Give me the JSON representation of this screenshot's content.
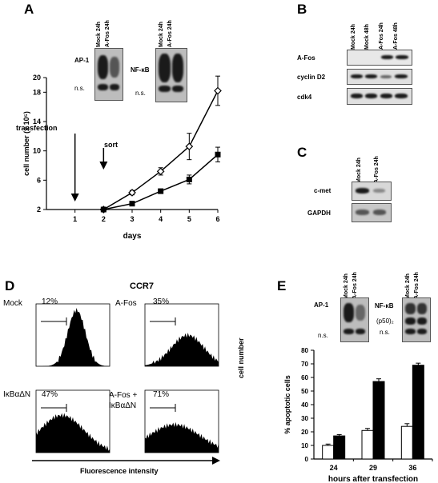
{
  "panels": {
    "A": {
      "label": "A",
      "gel1": {
        "lanes": [
          "Mock 24h",
          "A-Fos 24h"
        ],
        "label": "AP-1",
        "ns": "n.s."
      },
      "gel2": {
        "lanes": [
          "Mock 24h",
          "A-Fos 24h"
        ],
        "label": "NF-κB",
        "ns": "n.s."
      },
      "annot_transfection": "transfection",
      "annot_sort": "sort",
      "chart_data": {
        "type": "line",
        "xlabel": "days",
        "ylabel": "cell number (x 10⁵)",
        "xlim": [
          0,
          6
        ],
        "ylim": [
          2,
          20
        ],
        "x_ticks": [
          1,
          2,
          3,
          4,
          5,
          6
        ],
        "y_ticks": [
          2,
          6,
          10,
          14,
          18,
          20
        ],
        "series": [
          {
            "marker": "open-diamond",
            "x": [
              2,
              3,
              4,
              5,
              6
            ],
            "y": [
              2,
              4.3,
              7.2,
              10.6,
              18.2
            ],
            "err": [
              0,
              0.3,
              0.5,
              1.8,
              2
            ]
          },
          {
            "marker": "filled-square",
            "x": [
              2,
              3,
              4,
              5,
              6
            ],
            "y": [
              2,
              2.8,
              4.5,
              6.1,
              9.5
            ],
            "err": [
              0,
              0.2,
              0.3,
              0.6,
              1
            ]
          }
        ]
      }
    },
    "B": {
      "label": "B",
      "lanes": [
        "Mock 24h",
        "Mock 48h",
        "A-Fos 24h",
        "A-Fos 48h"
      ],
      "rows": [
        "A-Fos",
        "cyclin D2",
        "cdk4"
      ]
    },
    "C": {
      "label": "C",
      "lanes": [
        "Mock 24h",
        "A-Fos 24h"
      ],
      "rows": [
        "c-met",
        "GAPDH"
      ]
    },
    "D": {
      "label": "D",
      "title": "CCR7",
      "plots": [
        {
          "name": "Mock",
          "pct": "12%"
        },
        {
          "name": "A-Fos",
          "pct": "35%"
        },
        {
          "name": "IκBαΔN",
          "pct": "47%"
        },
        {
          "name": "A-Fos + IκBαΔN",
          "pct": "71%"
        }
      ],
      "xlabel": "Fluorescence intensity",
      "ylabel": "cell number"
    },
    "E": {
      "label": "E",
      "gel1": {
        "lanes": [
          "Mock 24h",
          "A-Fos 24h"
        ],
        "label": "AP-1",
        "ns": "n.s."
      },
      "gel2": {
        "lanes": [
          "Mock 24h",
          "A-Fos 24h"
        ],
        "label": "NF-κB",
        "p50": "(p50)₂",
        "ns": "n.s."
      },
      "chart_data": {
        "type": "bar",
        "xlabel": "hours after transfection",
        "ylabel": "% apoptotic cells",
        "categories": [
          "24",
          "29",
          "36"
        ],
        "ylim": [
          0,
          80
        ],
        "y_ticks": [
          0,
          10,
          20,
          30,
          40,
          50,
          60,
          70,
          80
        ],
        "series": [
          {
            "fill": "white",
            "values": [
              10,
              21,
              24
            ],
            "err": [
              1,
              1.5,
              2
            ]
          },
          {
            "fill": "black",
            "values": [
              17,
              57,
              69
            ],
            "err": [
              1,
              2,
              1.5
            ]
          }
        ]
      }
    }
  }
}
